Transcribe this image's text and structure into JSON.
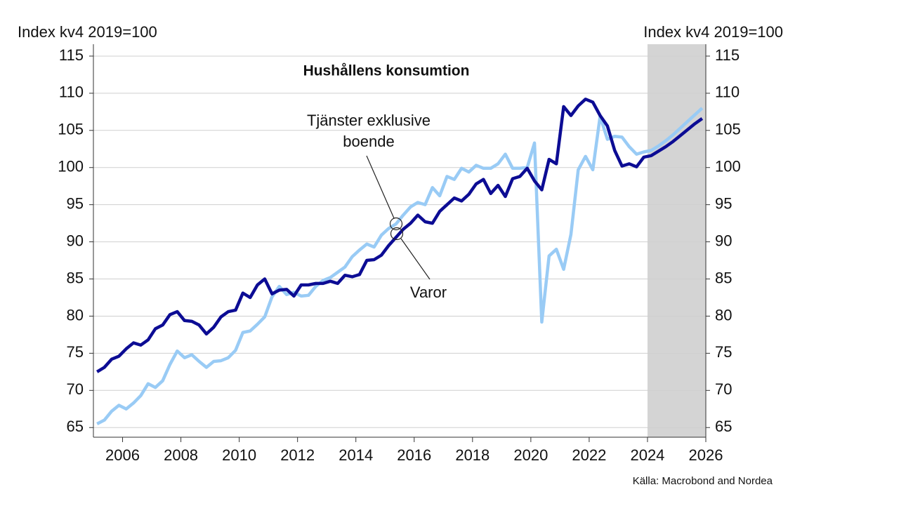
{
  "chart_data": {
    "type": "line",
    "title": "Hushållens konsumtion",
    "ylabel": "Index kv4 2019=100",
    "y2label": "Index kv4 2019=100",
    "source": "Källa: Macrobond and Nordea",
    "annotations": [
      "Tjänster exklusive boende",
      "Varor"
    ],
    "xlim": [
      2005,
      2026
    ],
    "xticks": [
      2006,
      2008,
      2010,
      2012,
      2014,
      2016,
      2018,
      2020,
      2022,
      2024,
      2026
    ],
    "ylim": [
      63.7,
      116.6
    ],
    "yticks": [
      65,
      70,
      75,
      80,
      85,
      90,
      95,
      100,
      105,
      110,
      115
    ],
    "y2lim": [
      63.7,
      116.6
    ],
    "y2ticks": [
      65,
      70,
      75,
      80,
      85,
      90,
      95,
      100,
      105,
      110,
      115
    ],
    "grid": true,
    "shade": [
      2024,
      2026
    ],
    "shade_color": "#d4d4d4",
    "x": [
      2005.125,
      2005.375,
      2005.625,
      2005.875,
      2006.125,
      2006.375,
      2006.625,
      2006.875,
      2007.125,
      2007.375,
      2007.625,
      2007.875,
      2008.125,
      2008.375,
      2008.625,
      2008.875,
      2009.125,
      2009.375,
      2009.625,
      2009.875,
      2010.125,
      2010.375,
      2010.625,
      2010.875,
      2011.125,
      2011.375,
      2011.625,
      2011.875,
      2012.125,
      2012.375,
      2012.625,
      2012.875,
      2013.125,
      2013.375,
      2013.625,
      2013.875,
      2014.125,
      2014.375,
      2014.625,
      2014.875,
      2015.125,
      2015.375,
      2015.625,
      2015.875,
      2016.125,
      2016.375,
      2016.625,
      2016.875,
      2017.125,
      2017.375,
      2017.625,
      2017.875,
      2018.125,
      2018.375,
      2018.625,
      2018.875,
      2019.125,
      2019.375,
      2019.625,
      2019.875,
      2020.125,
      2020.375,
      2020.625,
      2020.875,
      2021.125,
      2021.375,
      2021.625,
      2021.875,
      2022.125,
      2022.375,
      2022.625,
      2022.875,
      2023.125,
      2023.375,
      2023.625,
      2023.875,
      2024.125,
      2024.375,
      2024.625,
      2024.875,
      2025.125,
      2025.375,
      2025.625,
      2025.875
    ],
    "series": [
      {
        "name": "Tjänster exklusive boende",
        "color": "#99cbf5",
        "values": [
          65.5,
          66.0,
          67.2,
          68.0,
          67.5,
          68.3,
          69.3,
          70.9,
          70.4,
          71.3,
          73.5,
          75.3,
          74.4,
          74.8,
          73.9,
          73.1,
          73.9,
          74.0,
          74.4,
          75.4,
          77.8,
          78.0,
          78.9,
          79.9,
          82.6,
          84.0,
          82.9,
          83.2,
          82.7,
          82.8,
          84.0,
          84.8,
          85.2,
          85.9,
          86.6,
          88.0,
          88.9,
          89.7,
          89.3,
          90.9,
          91.8,
          92.4,
          93.6,
          94.7,
          95.3,
          95.0,
          97.3,
          96.2,
          98.8,
          98.4,
          99.9,
          99.4,
          100.3,
          99.9,
          99.9,
          100.5,
          101.8,
          99.9,
          99.9,
          100.0,
          103.3,
          79.2,
          88.1,
          89.0,
          86.3,
          91.0,
          99.7,
          101.5,
          99.7,
          106.9,
          103.8,
          104.2,
          104.1,
          102.8,
          101.8,
          102.1,
          102.3,
          102.9,
          103.6,
          104.4,
          105.3,
          106.2,
          107.1,
          108.0
        ]
      },
      {
        "name": "Varor",
        "color": "#0c0c94",
        "values": [
          72.5,
          73.1,
          74.2,
          74.6,
          75.6,
          76.4,
          76.1,
          76.8,
          78.3,
          78.8,
          80.2,
          80.6,
          79.4,
          79.3,
          78.8,
          77.6,
          78.5,
          79.9,
          80.6,
          80.8,
          83.1,
          82.5,
          84.2,
          85.0,
          83.0,
          83.5,
          83.6,
          82.7,
          84.2,
          84.2,
          84.4,
          84.4,
          84.7,
          84.4,
          85.5,
          85.3,
          85.6,
          87.5,
          87.6,
          88.2,
          89.5,
          90.6,
          91.7,
          92.5,
          93.6,
          92.7,
          92.5,
          94.1,
          95.0,
          95.9,
          95.5,
          96.4,
          97.8,
          98.4,
          96.5,
          97.6,
          96.1,
          98.5,
          98.8,
          99.9,
          98.2,
          97.0,
          101.1,
          100.5,
          108.2,
          107.0,
          108.3,
          109.2,
          108.8,
          107.0,
          105.6,
          102.3,
          100.2,
          100.5,
          100.1,
          101.4,
          101.6,
          102.2,
          102.8,
          103.5,
          104.3,
          105.1,
          105.9,
          106.6
        ]
      }
    ]
  }
}
